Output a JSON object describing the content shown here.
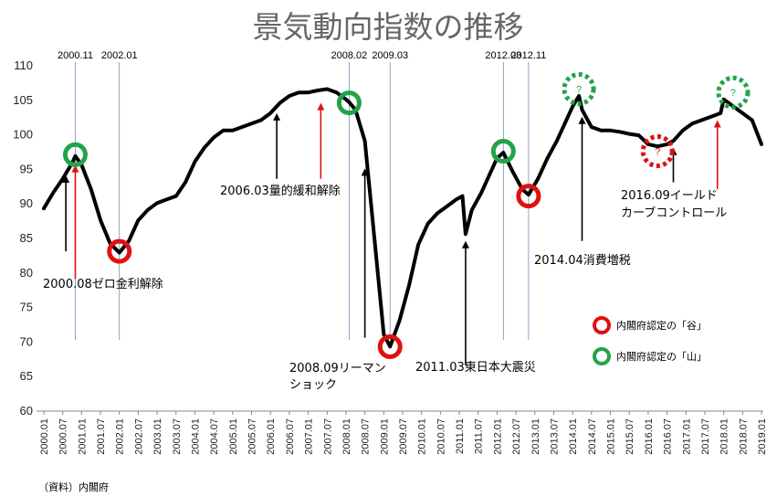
{
  "chart_data": {
    "type": "line",
    "title": "景気動向指数の推移",
    "source": "（資料）内閣府",
    "ylim": [
      60,
      110
    ],
    "y_ticks": [
      60,
      65,
      70,
      75,
      80,
      85,
      90,
      95,
      100,
      105,
      110
    ],
    "x_ticks": [
      "2000.01",
      "2000.07",
      "2001.01",
      "2001.07",
      "2002.01",
      "2002.07",
      "2003.01",
      "2003.07",
      "2004.01",
      "2004.07",
      "2005.01",
      "2005.07",
      "2006.01",
      "2006.07",
      "2007.01",
      "2007.07",
      "2008.01",
      "2008.07",
      "2009.01",
      "2009.07",
      "2010.01",
      "2010.07",
      "2011.01",
      "2011.07",
      "2012.01",
      "2012.07",
      "2013.01",
      "2013.07",
      "2014.01",
      "2014.07",
      "2015.01",
      "2015.07",
      "2016.01",
      "2016.07",
      "2017.01",
      "2017.07",
      "2018.01",
      "2018.07",
      "2019.01"
    ],
    "grid": false,
    "series": [
      {
        "name": "",
        "color": "#000000",
        "x": [
          "2000.01",
          "2000.04",
          "2000.07",
          "2000.10",
          "2000.11",
          "2001.01",
          "2001.04",
          "2001.07",
          "2001.10",
          "2002.01",
          "2002.04",
          "2002.07",
          "2002.10",
          "2003.01",
          "2003.04",
          "2003.07",
          "2003.10",
          "2004.01",
          "2004.04",
          "2004.07",
          "2004.10",
          "2005.01",
          "2005.04",
          "2005.07",
          "2005.10",
          "2006.01",
          "2006.04",
          "2006.07",
          "2006.10",
          "2007.01",
          "2007.04",
          "2007.07",
          "2007.10",
          "2008.01",
          "2008.02",
          "2008.04",
          "2008.07",
          "2008.10",
          "2009.01",
          "2009.03",
          "2009.06",
          "2009.09",
          "2009.12",
          "2010.03",
          "2010.06",
          "2010.09",
          "2010.12",
          "2011.02",
          "2011.03",
          "2011.05",
          "2011.08",
          "2011.11",
          "2012.01",
          "2012.03",
          "2012.06",
          "2012.09",
          "2012.11",
          "2013.02",
          "2013.05",
          "2013.08",
          "2013.11",
          "2014.01",
          "2014.03",
          "2014.04",
          "2014.07",
          "2014.10",
          "2015.01",
          "2015.04",
          "2015.07",
          "2015.10",
          "2016.01",
          "2016.04",
          "2016.07",
          "2016.09",
          "2016.12",
          "2017.03",
          "2017.06",
          "2017.09",
          "2017.12",
          "2018.01",
          "2018.04",
          "2018.07",
          "2018.10",
          "2019.01"
        ],
        "values": [
          89.2,
          91.5,
          93.5,
          95.8,
          96.8,
          95.5,
          92.0,
          87.5,
          84.2,
          82.8,
          84.5,
          87.5,
          89.0,
          90.0,
          90.5,
          91.0,
          93.0,
          96.0,
          98.0,
          99.5,
          100.5,
          100.5,
          101.0,
          101.5,
          102.0,
          103.0,
          104.5,
          105.5,
          106.0,
          106.0,
          106.3,
          106.5,
          106.0,
          105.0,
          104.6,
          103.5,
          99.0,
          85.0,
          71.0,
          69.2,
          73.0,
          78.0,
          84.0,
          87.0,
          88.5,
          89.5,
          90.5,
          91.0,
          85.5,
          89.0,
          91.5,
          94.5,
          96.5,
          97.3,
          94.5,
          92.0,
          91.2,
          93.5,
          96.5,
          99.0,
          102.0,
          104.0,
          105.5,
          103.5,
          101.0,
          100.5,
          100.5,
          100.3,
          100.0,
          99.8,
          98.5,
          98.2,
          98.5,
          99.0,
          100.5,
          101.5,
          102.0,
          102.5,
          103.0,
          105.0,
          104.0,
          103.0,
          102.0,
          98.5
        ]
      }
    ],
    "circles": [
      {
        "x": "2000.11",
        "y": 97.0,
        "type": "山",
        "style": "solid",
        "color": "#22a34a"
      },
      {
        "x": "2002.01",
        "y": 83.0,
        "type": "谷",
        "style": "solid",
        "color": "#e01010"
      },
      {
        "x": "2008.02",
        "y": 104.5,
        "type": "山",
        "style": "solid",
        "color": "#22a34a"
      },
      {
        "x": "2009.03",
        "y": 69.2,
        "type": "谷",
        "style": "solid",
        "color": "#e01010"
      },
      {
        "x": "2012.03",
        "y": 97.5,
        "type": "山",
        "style": "solid",
        "color": "#22a34a"
      },
      {
        "x": "2012.11",
        "y": 91.0,
        "type": "谷",
        "style": "solid",
        "color": "#e01010"
      },
      {
        "x": "2014.03",
        "y": 106.5,
        "type": "山",
        "style": "dashed",
        "color": "#22a34a",
        "label": "?"
      },
      {
        "x": "2016.04",
        "y": 97.5,
        "type": "谷",
        "style": "dashed",
        "color": "#e01010",
        "label": "?"
      },
      {
        "x": "2018.04",
        "y": 106.0,
        "type": "山",
        "style": "dashed",
        "color": "#22a34a",
        "label": "?"
      }
    ],
    "top_labels": [
      {
        "x": "2000.11",
        "text": "2000.11"
      },
      {
        "x": "2002.01",
        "text": "2002.01"
      },
      {
        "x": "2008.02",
        "text": "2008.02"
      },
      {
        "x": "2009.03",
        "text": "2009.03"
      },
      {
        "x": "2012.03",
        "text": "2012.03"
      },
      {
        "x": "2012.11",
        "text": "2012.11"
      }
    ],
    "event_arrows": [
      {
        "x": "2000.08",
        "y_from": 83,
        "y_to": 94,
        "color": "#000000"
      },
      {
        "x": "2000.11",
        "y_from": 79,
        "y_to": 95.5,
        "color": "#e01010"
      },
      {
        "x": "2006.03",
        "y_from": 93.5,
        "y_to": 103,
        "color": "#000000"
      },
      {
        "x": "2007.05",
        "y_from": 93.5,
        "y_to": 104.5,
        "color": "#e01010"
      },
      {
        "x": "2008.07",
        "y_from": 70.5,
        "y_to": 95,
        "color": "#000000"
      },
      {
        "x": "2011.03",
        "y_from": 66.5,
        "y_to": 84.5,
        "color": "#000000"
      },
      {
        "x": "2014.04",
        "y_from": 84.5,
        "y_to": 102.5,
        "color": "#000000"
      },
      {
        "x": "2016.09",
        "y_from": 93,
        "y_to": 98,
        "color": "#000000"
      },
      {
        "x": "2017.11",
        "y_from": 92,
        "y_to": 102,
        "color": "#e01010"
      }
    ],
    "annotations": [
      {
        "text": "2000.08ゼロ金利解除"
      },
      {
        "text": "2006.03量的緩和解除"
      },
      {
        "text": "2008.09リーマン"
      },
      {
        "text": "ショック"
      },
      {
        "text": "2011.03東日本大震災"
      },
      {
        "text": "2014.04消費増税"
      },
      {
        "text": "2016.09イールド"
      },
      {
        "text": "カーブコントロール"
      }
    ],
    "legend": [
      {
        "text": "内閣府認定の「谷」",
        "color": "#e01010"
      },
      {
        "text": "内閣府認定の「山」",
        "color": "#22a34a"
      }
    ]
  }
}
